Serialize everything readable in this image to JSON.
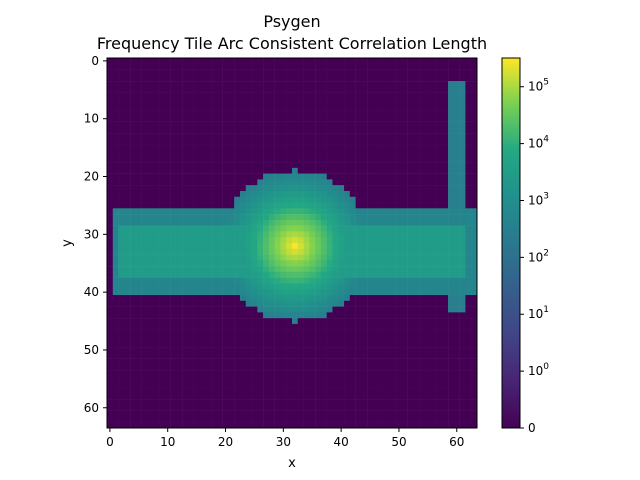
{
  "chart_data": {
    "type": "heatmap",
    "title": "Psygen",
    "subtitle": "Frequency Tile Arc Consistent Correlation Length",
    "xlabel": "x",
    "ylabel": "y",
    "grid_size": [
      64,
      64
    ],
    "xlim": [
      0,
      63
    ],
    "ylim": [
      63,
      0
    ],
    "x_ticks": [
      0,
      10,
      20,
      30,
      40,
      50,
      60
    ],
    "y_ticks": [
      0,
      10,
      20,
      30,
      40,
      50,
      60
    ],
    "colormap": "viridis",
    "color_scale": "symlog",
    "color_range": [
      0,
      320000
    ],
    "colorbar_ticks": [
      {
        "value": 0,
        "label": "0"
      },
      {
        "value": 1,
        "label": "10^0"
      },
      {
        "value": 10,
        "label": "10^1"
      },
      {
        "value": 100,
        "label": "10^2"
      },
      {
        "value": 1000,
        "label": "10^3"
      },
      {
        "value": 10000,
        "label": "10^4"
      },
      {
        "value": 100000,
        "label": "10^5"
      }
    ],
    "background_value": 0,
    "regions": [
      {
        "name": "horizontal band",
        "x_range": [
          1,
          63
        ],
        "y_range": [
          26,
          40
        ],
        "core_y_range": [
          29,
          37
        ],
        "core_value": 3000,
        "edge_value": 500
      },
      {
        "name": "vertical stub",
        "x_range": [
          59,
          61
        ],
        "y_range": [
          4,
          43
        ],
        "value": 300
      },
      {
        "name": "central blob",
        "center": [
          32,
          32
        ],
        "radius": 13,
        "peak_value": 300000
      }
    ]
  }
}
